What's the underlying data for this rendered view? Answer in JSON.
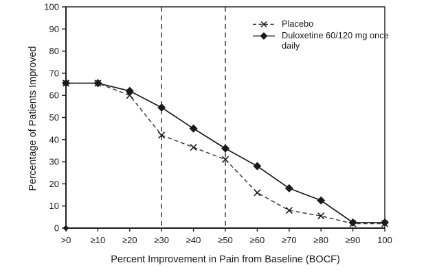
{
  "chart_data": {
    "type": "line",
    "title": "",
    "xlabel": "Percent Improvement in Pain from Baseline (BOCF)",
    "ylabel": "Percentage of Patients Improved",
    "categories": [
      ">0",
      "≥10",
      "≥20",
      "≥30",
      "≥40",
      "≥50",
      "≥60",
      "≥70",
      "≥80",
      "≥90",
      "100"
    ],
    "series": [
      {
        "name": "Placebo",
        "marker": "x",
        "line_style": "dashed",
        "values": [
          65.5,
          65.5,
          60,
          42,
          36.5,
          31,
          16,
          8,
          5.5,
          2,
          2
        ]
      },
      {
        "name": "Duloxetine 60/120 mg once daily",
        "marker": "diamond",
        "line_style": "solid",
        "values": [
          65.5,
          65.5,
          62,
          54.5,
          45,
          36,
          28,
          18,
          12.5,
          2.5,
          2.5
        ]
      }
    ],
    "ylim": [
      0,
      100
    ],
    "ytick_step": 10,
    "reference_lines": {
      "style": "dashed",
      "at_categories": [
        "≥30",
        "≥50"
      ]
    },
    "legend": {
      "position": "top-right",
      "items": [
        "Placebo",
        "Duloxetine 60/120 mg once daily"
      ]
    },
    "grid": false,
    "frame": true,
    "origin_marker": true,
    "colors": {
      "line": "#1a1a1a",
      "background": "#ffffff"
    }
  }
}
